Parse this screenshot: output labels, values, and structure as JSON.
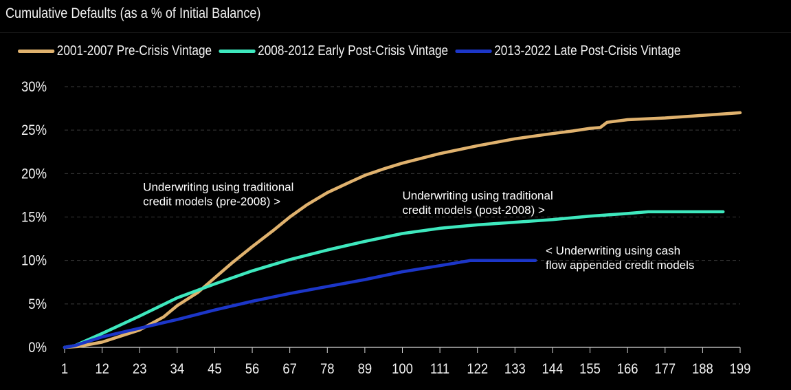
{
  "chart_data": {
    "type": "line",
    "title": "Cumulative Defaults (as a % of Initial Balance)",
    "xlabel": "",
    "ylabel": "",
    "xlim": [
      1,
      199
    ],
    "ylim": [
      0,
      30
    ],
    "x_ticks": [
      1,
      12,
      23,
      34,
      45,
      56,
      67,
      78,
      89,
      100,
      111,
      122,
      133,
      144,
      155,
      166,
      177,
      188,
      199
    ],
    "y_ticks": [
      0,
      5,
      10,
      15,
      20,
      25,
      30
    ],
    "y_tick_labels": [
      "0%",
      "5%",
      "10%",
      "15%",
      "20%",
      "25%",
      "30%"
    ],
    "grid": "horizontal dashed",
    "legend_position": "top-left",
    "series": [
      {
        "name": "2001-2007 Pre-Crisis Vintage",
        "color": "#E0B26E",
        "points": [
          [
            1,
            0
          ],
          [
            5,
            0.1
          ],
          [
            12,
            0.6
          ],
          [
            23,
            2.0
          ],
          [
            30,
            3.5
          ],
          [
            34,
            4.8
          ],
          [
            40,
            6.3
          ],
          [
            45,
            8.0
          ],
          [
            50,
            9.7
          ],
          [
            56,
            11.6
          ],
          [
            62,
            13.4
          ],
          [
            67,
            15.0
          ],
          [
            72,
            16.4
          ],
          [
            78,
            17.8
          ],
          [
            84,
            18.9
          ],
          [
            89,
            19.8
          ],
          [
            95,
            20.6
          ],
          [
            100,
            21.2
          ],
          [
            111,
            22.3
          ],
          [
            122,
            23.2
          ],
          [
            133,
            24.0
          ],
          [
            144,
            24.6
          ],
          [
            150,
            24.9
          ],
          [
            155,
            25.2
          ],
          [
            158,
            25.3
          ],
          [
            160,
            25.9
          ],
          [
            166,
            26.2
          ],
          [
            177,
            26.4
          ],
          [
            188,
            26.7
          ],
          [
            199,
            27.0
          ]
        ]
      },
      {
        "name": "2008-2012 Early Post-Crisis Vintage",
        "color": "#3EE8BE",
        "points": [
          [
            1,
            0
          ],
          [
            4,
            0.2
          ],
          [
            12,
            1.6
          ],
          [
            23,
            3.6
          ],
          [
            34,
            5.7
          ],
          [
            45,
            7.3
          ],
          [
            56,
            8.8
          ],
          [
            67,
            10.1
          ],
          [
            78,
            11.2
          ],
          [
            89,
            12.2
          ],
          [
            100,
            13.1
          ],
          [
            111,
            13.7
          ],
          [
            122,
            14.1
          ],
          [
            133,
            14.4
          ],
          [
            144,
            14.7
          ],
          [
            155,
            15.1
          ],
          [
            166,
            15.4
          ],
          [
            172,
            15.6
          ],
          [
            177,
            15.6
          ],
          [
            188,
            15.6
          ],
          [
            194,
            15.6
          ]
        ]
      },
      {
        "name": "2013-2022 Late Post-Crisis Vintage",
        "color": "#1C36C8",
        "points": [
          [
            1,
            0
          ],
          [
            4,
            0.2
          ],
          [
            12,
            1.2
          ],
          [
            23,
            2.2
          ],
          [
            34,
            3.2
          ],
          [
            45,
            4.3
          ],
          [
            56,
            5.3
          ],
          [
            67,
            6.2
          ],
          [
            78,
            7.0
          ],
          [
            89,
            7.8
          ],
          [
            100,
            8.7
          ],
          [
            111,
            9.4
          ],
          [
            120,
            10.0
          ],
          [
            122,
            10.0
          ],
          [
            133,
            10.0
          ],
          [
            139,
            10.0
          ]
        ]
      }
    ],
    "annotations": [
      {
        "lines": [
          "Underwriting using traditional",
          "credit models (pre-2008) >"
        ],
        "x": 24,
        "y": 18.0
      },
      {
        "lines": [
          "Underwriting using traditional",
          "credit models (post-2008) >"
        ],
        "x": 100,
        "y": 17.0
      },
      {
        "lines": [
          "< Underwriting using cash",
          "flow appended credit models"
        ],
        "x": 142,
        "y": 10.7
      }
    ]
  }
}
